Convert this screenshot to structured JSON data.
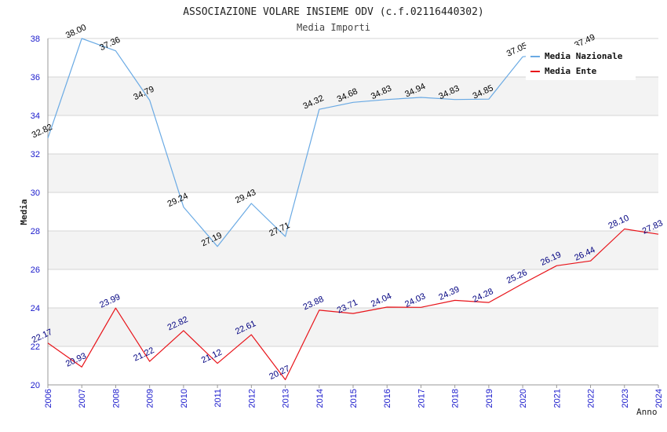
{
  "chart_data": {
    "type": "line",
    "title": "ASSOCIAZIONE VOLARE INSIEME ODV (c.f.02116440302)",
    "subtitle": "Media Importi",
    "xlabel": "Anno",
    "ylabel": "Media",
    "ylim": [
      20,
      38
    ],
    "yticks": [
      "20",
      "22",
      "24",
      "26",
      "28",
      "30",
      "32",
      "34",
      "36",
      "38"
    ],
    "categories": [
      "2006",
      "2007",
      "2008",
      "2009",
      "2010",
      "2011",
      "2012",
      "2013",
      "2014",
      "2015",
      "2016",
      "2017",
      "2018",
      "2019",
      "2020",
      "2021",
      "2022",
      "2023",
      "2024"
    ],
    "grid": true,
    "legend_position": "top-right",
    "series": [
      {
        "name": "Media Nazionale",
        "color": "#6aaae4",
        "label_color": "#000000",
        "values": [
          32.82,
          38.0,
          37.36,
          34.79,
          29.24,
          27.19,
          29.43,
          27.71,
          34.32,
          34.68,
          34.83,
          34.94,
          34.83,
          34.85,
          37.05,
          null,
          37.49,
          null,
          null
        ],
        "labels": [
          "32.82",
          "38.00",
          "37.36",
          "34.79",
          "29.24",
          "27.19",
          "29.43",
          "27.71",
          "34.32",
          "34.68",
          "34.83",
          "34.94",
          "34.83",
          "34.85",
          "37.05",
          "",
          "37.49",
          "",
          ""
        ]
      },
      {
        "name": "Media Ente",
        "color": "#e8141a",
        "label_color": "#000080",
        "values": [
          22.17,
          20.93,
          23.99,
          21.22,
          22.82,
          21.12,
          22.61,
          20.27,
          23.88,
          23.71,
          24.04,
          24.03,
          24.39,
          24.28,
          25.26,
          26.19,
          26.44,
          28.1,
          27.83
        ],
        "labels": [
          "22.17",
          "20.93",
          "23.99",
          "21.22",
          "22.82",
          "21.12",
          "22.61",
          "20.27",
          "23.88",
          "23.71",
          "24.04",
          "24.03",
          "24.39",
          "24.28",
          "25.26",
          "26.19",
          "26.44",
          "28.10",
          "27.83"
        ]
      }
    ]
  },
  "colors": {
    "band": "#f3f3f3",
    "gridline": "#d4d4d4",
    "axis": "#999999",
    "tick_label": "#1a1acc",
    "title": "#222222"
  }
}
